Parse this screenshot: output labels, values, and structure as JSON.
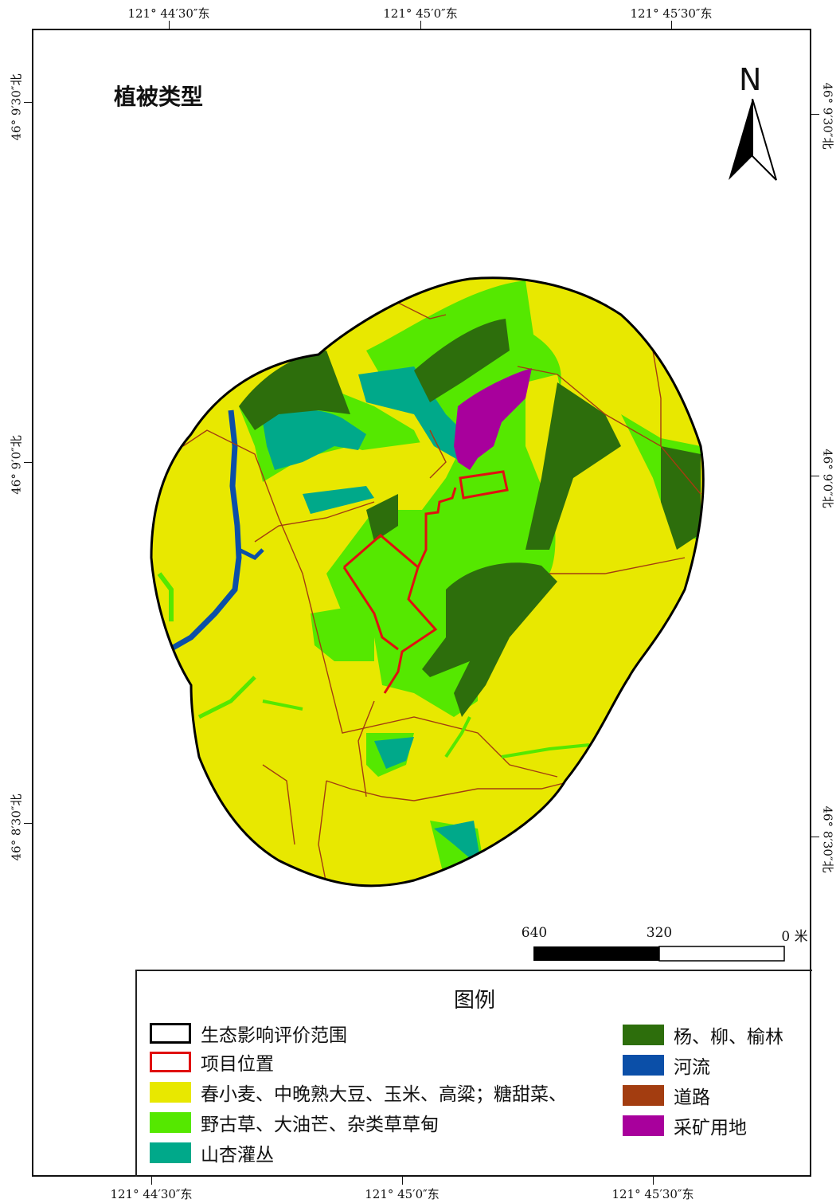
{
  "title": "植被类型",
  "north": "N",
  "coords": {
    "top": [
      "121° 44′30″东",
      "121° 45′0″东",
      "121° 45′30″东"
    ],
    "bottom": [
      "121° 44′30″东",
      "121° 45′0″东",
      "121° 45′30″东"
    ],
    "left": [
      "46° 9′30″北",
      "46° 9′0″北",
      "46° 8′30″北"
    ],
    "right": [
      "46° 9′30″北",
      "46° 9′0″北",
      "46° 8′30″北"
    ]
  },
  "scale": {
    "labels": [
      "640",
      "320",
      "0 米"
    ]
  },
  "legend": {
    "title": "图例",
    "left_items": [
      {
        "label": "生态影响评价范围",
        "fill": "#ffffff",
        "stroke": "#000000",
        "style": "outline"
      },
      {
        "label": "项目位置",
        "fill": "#ffffff",
        "stroke": "#e01010",
        "style": "outline"
      },
      {
        "label": "春小麦、中晚熟大豆、玉米、高粱；糖甜菜、",
        "fill": "#e8e800",
        "stroke": "",
        "style": "fill"
      },
      {
        "label": "野古草、大油芒、杂类草草甸",
        "fill": "#55e800",
        "stroke": "",
        "style": "fill"
      },
      {
        "label": "山杏灌丛",
        "fill": "#00a98a",
        "stroke": "",
        "style": "fill"
      }
    ],
    "right_items": [
      {
        "label": "杨、柳、榆林",
        "fill": "#2d6e0c",
        "stroke": "",
        "style": "fill"
      },
      {
        "label": "河流",
        "fill": "#0b4fa8",
        "stroke": "",
        "style": "fill"
      },
      {
        "label": "道路",
        "fill": "#a33d10",
        "stroke": "",
        "style": "fill"
      },
      {
        "label": "采矿用地",
        "fill": "#a8009c",
        "stroke": "",
        "style": "fill"
      }
    ]
  },
  "colors": {
    "cropland": "#e8e800",
    "meadow": "#55e800",
    "shrub": "#00a98a",
    "forest": "#2d6e0c",
    "river": "#0b4fa8",
    "road": "#a33d10",
    "mining": "#a8009c",
    "project": "#e01010"
  }
}
